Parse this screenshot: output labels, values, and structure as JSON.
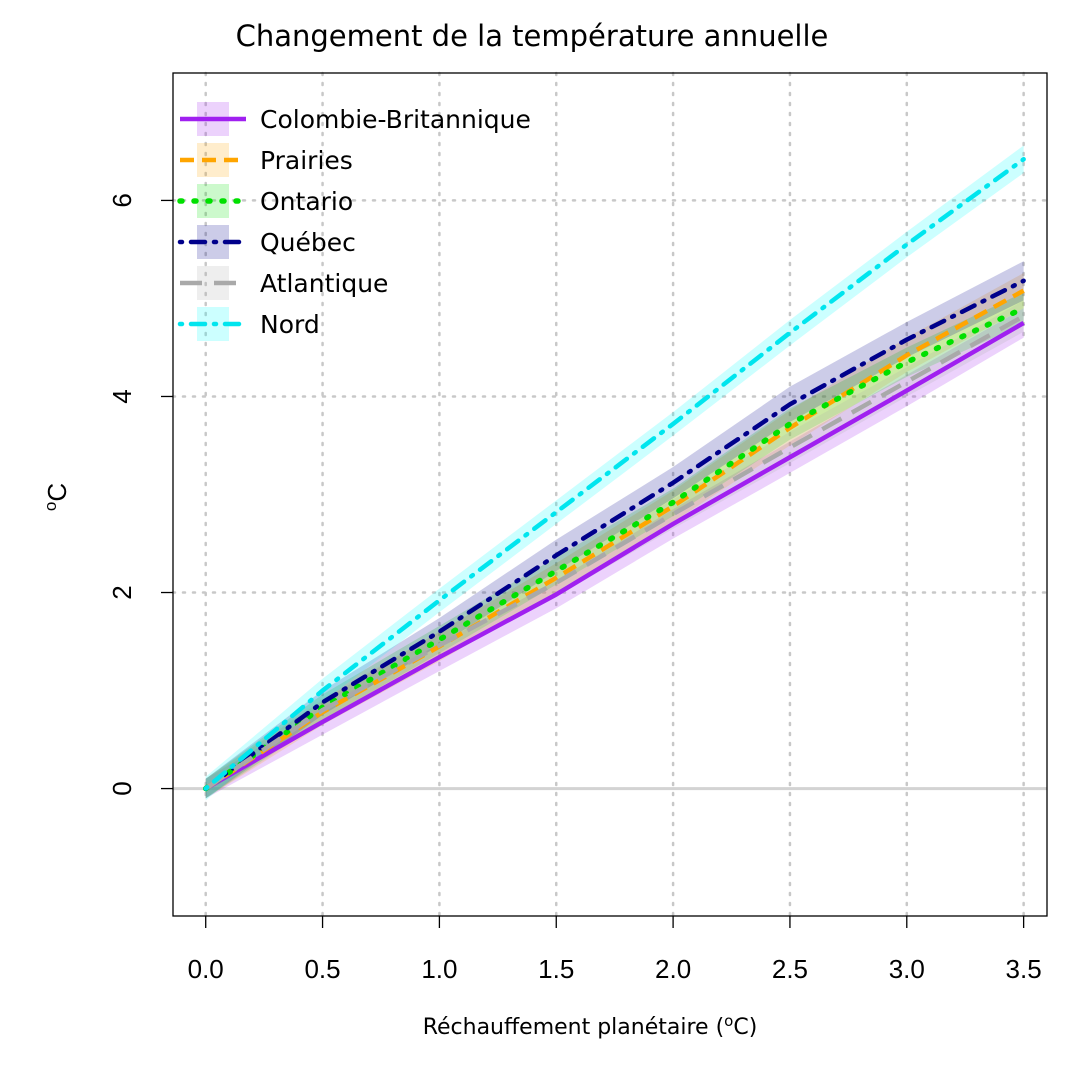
{
  "chart_data": {
    "type": "line",
    "title": "Changement de la température annuelle",
    "xlabel_main": "Réchauffement planétaire (",
    "xlabel_sup": "o",
    "xlabel_end": "C)",
    "ylabel_sup": "o",
    "ylabel_main": "C",
    "x": [
      0,
      0.5,
      1.0,
      1.5,
      2.0,
      2.5,
      3.0,
      3.5
    ],
    "x_tick_labels": [
      "0.0",
      "0.5",
      "1.0",
      "1.5",
      "2.0",
      "2.5",
      "3.0",
      "3.5"
    ],
    "y_ticks": [
      0,
      2,
      4,
      6
    ],
    "y_tick_labels": [
      "0",
      "2",
      "4",
      "6"
    ],
    "xlim": [
      -0.14,
      3.6
    ],
    "ylim": [
      -1.3,
      7.3
    ],
    "grid": true,
    "legend_position": "top-left",
    "series": [
      {
        "name": "Colombie-Britannique",
        "color": "#a020f0",
        "band_color": "#a020f0",
        "dash": "solid",
        "values": [
          0.0,
          0.68,
          1.34,
          1.98,
          2.7,
          3.38,
          4.06,
          4.75
        ],
        "lower": [
          -0.1,
          0.55,
          1.2,
          1.84,
          2.55,
          3.22,
          3.9,
          4.6
        ],
        "upper": [
          0.1,
          0.8,
          1.48,
          2.12,
          2.85,
          3.54,
          4.22,
          4.9
        ]
      },
      {
        "name": "Prairies",
        "color": "#ffa500",
        "band_color": "#ffa500",
        "dash": "dashed",
        "values": [
          0.0,
          0.78,
          1.45,
          2.15,
          2.88,
          3.68,
          4.42,
          5.08
        ],
        "lower": [
          -0.1,
          0.65,
          1.3,
          2.0,
          2.72,
          3.5,
          4.25,
          4.9
        ],
        "upper": [
          0.1,
          0.9,
          1.6,
          2.3,
          3.04,
          3.86,
          4.6,
          5.26
        ]
      },
      {
        "name": "Ontario",
        "color": "#00e000",
        "band_color": "#00e000",
        "dash": "dotted",
        "values": [
          0.0,
          0.83,
          1.52,
          2.22,
          2.92,
          3.72,
          4.35,
          4.9
        ],
        "lower": [
          -0.1,
          0.7,
          1.38,
          2.08,
          2.78,
          3.56,
          4.2,
          4.74
        ],
        "upper": [
          0.1,
          0.96,
          1.66,
          2.36,
          3.06,
          3.88,
          4.5,
          5.06
        ]
      },
      {
        "name": "Québec",
        "color": "#00008b",
        "band_color": "#00008b",
        "dash": "dashdot",
        "values": [
          0.0,
          0.88,
          1.6,
          2.38,
          3.12,
          3.92,
          4.58,
          5.18
        ],
        "lower": [
          -0.1,
          0.75,
          1.46,
          2.22,
          2.96,
          3.74,
          4.4,
          4.98
        ],
        "upper": [
          0.1,
          1.0,
          1.74,
          2.54,
          3.28,
          4.1,
          4.76,
          5.38
        ]
      },
      {
        "name": "Atlantique",
        "color": "#a9a9a9",
        "band_color": "#a9a9a9",
        "dash": "longdash",
        "values": [
          0.0,
          0.8,
          1.46,
          2.1,
          2.8,
          3.48,
          4.15,
          4.82
        ],
        "lower": [
          -0.1,
          0.68,
          1.32,
          1.96,
          2.65,
          3.32,
          4.0,
          4.66
        ],
        "upper": [
          0.1,
          0.92,
          1.6,
          2.24,
          2.95,
          3.64,
          4.3,
          4.98
        ]
      },
      {
        "name": "Nord",
        "color": "#00e5ee",
        "band_color": "#00ffff",
        "dash": "dashdot",
        "values": [
          0.0,
          1.0,
          1.92,
          2.82,
          3.72,
          4.65,
          5.55,
          6.42
        ],
        "lower": [
          -0.12,
          0.88,
          1.8,
          2.7,
          3.6,
          4.52,
          5.42,
          6.28
        ],
        "upper": [
          0.12,
          1.12,
          2.04,
          2.94,
          3.84,
          4.78,
          5.68,
          6.56
        ]
      }
    ]
  }
}
